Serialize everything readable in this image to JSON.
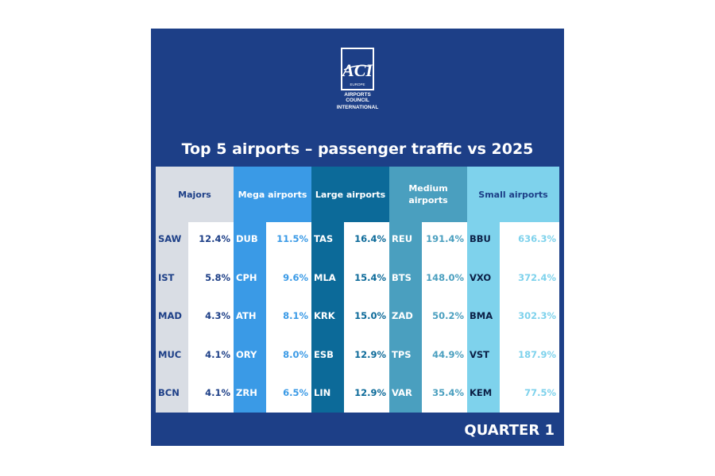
{
  "logo": {
    "mark": "ACI",
    "region": "EUROPE",
    "name_line1": "AIRPORTS COUNCIL",
    "name_line2": "INTERNATIONAL"
  },
  "title": "Top 5 airports – passenger traffic vs 2025",
  "quarter": "QUARTER 1",
  "colors": {
    "background": "#1d3f87",
    "majors": "#d9dde4",
    "mega": "#3a9ae6",
    "large": "#0c6a99",
    "medium": "#4a9fbf",
    "small": "#7ed2ec"
  },
  "groups": [
    {
      "label": "Majors",
      "rows": [
        {
          "code": "SAW",
          "value": "12.4%"
        },
        {
          "code": "IST",
          "value": "5.8%"
        },
        {
          "code": "MAD",
          "value": "4.3%"
        },
        {
          "code": "MUC",
          "value": "4.1%"
        },
        {
          "code": "BCN",
          "value": "4.1%"
        }
      ]
    },
    {
      "label": "Mega airports",
      "rows": [
        {
          "code": "DUB",
          "value": "11.5%"
        },
        {
          "code": "CPH",
          "value": "9.6%"
        },
        {
          "code": "ATH",
          "value": "8.1%"
        },
        {
          "code": "ORY",
          "value": "8.0%"
        },
        {
          "code": "ZRH",
          "value": "6.5%"
        }
      ]
    },
    {
      "label": "Large airports",
      "rows": [
        {
          "code": "TAS",
          "value": "16.4%"
        },
        {
          "code": "MLA",
          "value": "15.4%"
        },
        {
          "code": "KRK",
          "value": "15.0%"
        },
        {
          "code": "ESB",
          "value": "12.9%"
        },
        {
          "code": "LIN",
          "value": "12.9%"
        }
      ]
    },
    {
      "label": "Medium airports",
      "rows": [
        {
          "code": "REU",
          "value": "191.4%"
        },
        {
          "code": "BTS",
          "value": "148.0%"
        },
        {
          "code": "ZAD",
          "value": "50.2%"
        },
        {
          "code": "TPS",
          "value": "44.9%"
        },
        {
          "code": "VAR",
          "value": "35.4%"
        }
      ]
    },
    {
      "label": "Small airports",
      "rows": [
        {
          "code": "BBU",
          "value": "636.3%"
        },
        {
          "code": "VXO",
          "value": "372.4%"
        },
        {
          "code": "BMA",
          "value": "302.3%"
        },
        {
          "code": "VST",
          "value": "187.9%"
        },
        {
          "code": "KEM",
          "value": "77.5%"
        }
      ]
    }
  ]
}
